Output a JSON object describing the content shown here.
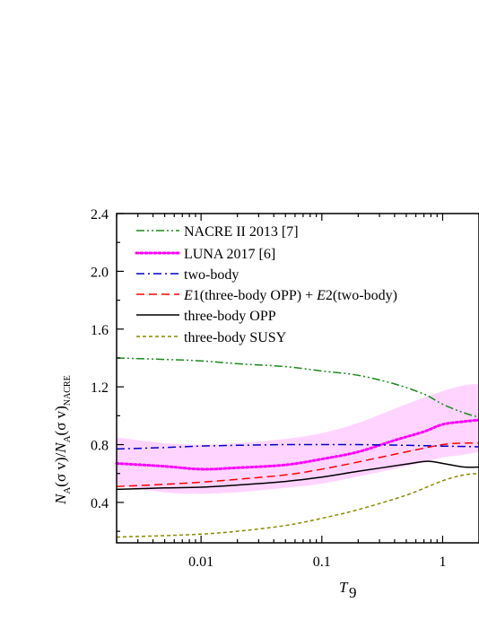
{
  "chart_data": {
    "type": "line",
    "xlabel": "T",
    "xlabel_sub": "9",
    "ylabel_parts": {
      "n1": "N",
      "s1": "A",
      "mid": "(σ v)/",
      "n2": "N",
      "s2": "A",
      "tail": "(σ v)",
      "s3": "NACRE"
    },
    "xscale": "log",
    "xlim": [
      0.002,
      2.0
    ],
    "ylim": [
      0.12,
      2.4
    ],
    "xticks": [
      {
        "value": 0.01,
        "label": "0.01"
      },
      {
        "value": 0.1,
        "label": "0.1"
      },
      {
        "value": 1,
        "label": "1"
      }
    ],
    "yticks": [
      {
        "value": 0.4,
        "label": "0.4"
      },
      {
        "value": 0.8,
        "label": "0.8"
      },
      {
        "value": 1.2,
        "label": "1.2"
      },
      {
        "value": 1.6,
        "label": "1.6"
      },
      {
        "value": 2.0,
        "label": "2.0"
      },
      {
        "value": 2.4,
        "label": "2.4"
      }
    ],
    "legend_position": "top-left",
    "band": {
      "color": "#ffb3ff",
      "x": [
        0.002,
        0.005,
        0.01,
        0.02,
        0.05,
        0.1,
        0.2,
        0.5,
        1.0,
        1.5,
        2.0
      ],
      "upper": [
        0.85,
        0.81,
        0.8,
        0.81,
        0.84,
        0.88,
        0.95,
        1.08,
        1.17,
        1.21,
        1.22
      ],
      "lower": [
        0.52,
        0.47,
        0.46,
        0.47,
        0.5,
        0.53,
        0.58,
        0.65,
        0.71,
        0.73,
        0.75
      ]
    },
    "series": [
      {
        "name": "NACRE II 2013 [7]",
        "color": "#1a8a1a",
        "style": "dashdotdot",
        "x": [
          0.002,
          0.005,
          0.01,
          0.02,
          0.05,
          0.1,
          0.2,
          0.4,
          0.7,
          1.0,
          1.5,
          2.0
        ],
        "y": [
          1.4,
          1.39,
          1.38,
          1.36,
          1.34,
          1.31,
          1.28,
          1.22,
          1.15,
          1.08,
          1.02,
          0.99
        ]
      },
      {
        "name": "LUNA 2017 [6]",
        "color": "#ff00ff",
        "style": "dotted",
        "x": [
          0.002,
          0.005,
          0.01,
          0.02,
          0.05,
          0.1,
          0.2,
          0.4,
          0.7,
          1.0,
          1.5,
          2.0
        ],
        "y": [
          0.67,
          0.65,
          0.63,
          0.64,
          0.66,
          0.7,
          0.75,
          0.83,
          0.89,
          0.94,
          0.96,
          0.97
        ]
      },
      {
        "name": "two-body",
        "color": "#0000cc",
        "style": "dashdot",
        "x": [
          0.002,
          0.005,
          0.01,
          0.02,
          0.05,
          0.1,
          0.2,
          0.5,
          1.0,
          2.0
        ],
        "y": [
          0.77,
          0.78,
          0.79,
          0.795,
          0.8,
          0.8,
          0.8,
          0.795,
          0.79,
          0.785
        ]
      },
      {
        "name_parts": {
          "e1": "E",
          "one": "1(three-body OPP) + ",
          "e2": "E",
          "two": "2(two-body)"
        },
        "color": "#ff0000",
        "style": "dashed",
        "x": [
          0.002,
          0.005,
          0.01,
          0.02,
          0.05,
          0.1,
          0.2,
          0.5,
          1.0,
          1.5,
          2.0
        ],
        "y": [
          0.51,
          0.525,
          0.54,
          0.56,
          0.59,
          0.63,
          0.68,
          0.75,
          0.8,
          0.81,
          0.81
        ]
      },
      {
        "name": "three-body OPP",
        "color": "#000000",
        "style": "solid",
        "x": [
          0.002,
          0.005,
          0.01,
          0.02,
          0.05,
          0.1,
          0.2,
          0.5,
          0.75,
          1.0,
          1.5,
          2.0
        ],
        "y": [
          0.49,
          0.5,
          0.505,
          0.52,
          0.545,
          0.575,
          0.615,
          0.665,
          0.685,
          0.67,
          0.645,
          0.645
        ]
      },
      {
        "name": "three-body SUSY",
        "color": "#8a8a00",
        "style": "shortdash",
        "x": [
          0.002,
          0.005,
          0.01,
          0.02,
          0.05,
          0.1,
          0.2,
          0.5,
          1.0,
          1.5,
          2.0
        ],
        "y": [
          0.16,
          0.17,
          0.18,
          0.2,
          0.24,
          0.29,
          0.35,
          0.45,
          0.55,
          0.59,
          0.6
        ]
      }
    ]
  }
}
